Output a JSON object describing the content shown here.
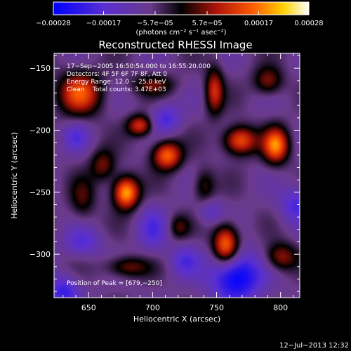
{
  "chart_data": {
    "type": "heatmap",
    "title": "Reconstructed RHESSI Image",
    "xlabel": "Heliocentric X (arcsec)",
    "ylabel": "Heliocentric Y (arcsec)",
    "xlim": [
      623,
      815
    ],
    "ylim": [
      -335,
      -138
    ],
    "x_ticks": [
      650,
      700,
      750,
      800
    ],
    "x_tick_labels": [
      "650",
      "700",
      "750",
      "800"
    ],
    "y_ticks": [
      -150,
      -200,
      -250,
      -300
    ],
    "y_tick_labels": [
      "−150",
      "−200",
      "−250",
      "−300"
    ],
    "colorbar": {
      "min": -0.00028,
      "max": 0.00028,
      "colormap": "blue-purple-black-red-orange-yellow-white",
      "ticks": [
        -0.00028,
        -0.00017,
        -5.7e-05,
        5.7e-05,
        0.00017,
        0.00028
      ],
      "tick_labels": [
        "−0.00028",
        "−0.00017",
        "−5.7e−05",
        "5.7e−05",
        "0.00017",
        "0.00028"
      ],
      "units": "(photons cm⁻² s⁻¹ asec⁻²)"
    },
    "annotations": [
      "17−Sep−2005 16:50:54.000 to 16:55:20.000",
      "Detectors: 4F 5F 6F 7F 8F, Att 0",
      "Energy Range: 12.0 − 25.0 keV",
      "Clean    Total counts: 3.47E+03"
    ],
    "peak_label": "Position of Peak = [679,−250]",
    "peak": {
      "x": 679,
      "y": -250
    },
    "sources": [
      {
        "x": 679,
        "y": -250,
        "value": 0.00028,
        "sx": 7,
        "sy": 9
      },
      {
        "x": 711,
        "y": -220,
        "value": 0.00023,
        "sx": 8,
        "sy": 8
      },
      {
        "x": 757,
        "y": -292,
        "value": 0.00025,
        "sx": 7,
        "sy": 11
      },
      {
        "x": 796,
        "y": -212,
        "value": 0.00024,
        "sx": 7,
        "sy": 10
      },
      {
        "x": 768,
        "y": -208,
        "value": 0.00022,
        "sx": 9,
        "sy": 8
      },
      {
        "x": 690,
        "y": -196,
        "value": 0.00018,
        "sx": 7,
        "sy": 6
      },
      {
        "x": 748,
        "y": -168,
        "value": 0.00017,
        "sx": 5,
        "sy": 13
      },
      {
        "x": 643,
        "y": -170,
        "value": 0.0002,
        "sx": 12,
        "sy": 12
      },
      {
        "x": 700,
        "y": -163,
        "value": 0.0001,
        "sx": 12,
        "sy": 6
      },
      {
        "x": 661,
        "y": -228,
        "value": 0.00012,
        "sx": 7,
        "sy": 9
      },
      {
        "x": 800,
        "y": -302,
        "value": 0.00014,
        "sx": 9,
        "sy": 8
      },
      {
        "x": 680,
        "y": -310,
        "value": 0.00012,
        "sx": 12,
        "sy": 6
      },
      {
        "x": 720,
        "y": -278,
        "value": 9e-05,
        "sx": 6,
        "sy": 7
      },
      {
        "x": 790,
        "y": -160,
        "value": 0.00013,
        "sx": 8,
        "sy": 8
      },
      {
        "x": 740,
        "y": -245,
        "value": 0.0001,
        "sx": 6,
        "sy": 10
      },
      {
        "x": 645,
        "y": -255,
        "value": 9e-05,
        "sx": 7,
        "sy": 12
      },
      {
        "x": 645,
        "y": -290,
        "value": -0.0001,
        "sx": 10,
        "sy": 8
      },
      {
        "x": 630,
        "y": -330,
        "value": -0.00014,
        "sx": 9,
        "sy": 9
      },
      {
        "x": 700,
        "y": -280,
        "value": -0.0001,
        "sx": 8,
        "sy": 12
      },
      {
        "x": 710,
        "y": -190,
        "value": -0.00012,
        "sx": 8,
        "sy": 8
      },
      {
        "x": 765,
        "y": -318,
        "value": -0.00022,
        "sx": 14,
        "sy": 14
      },
      {
        "x": 812,
        "y": -260,
        "value": -0.00012,
        "sx": 9,
        "sy": 10
      },
      {
        "x": 745,
        "y": -265,
        "value": -8e-05,
        "sx": 7,
        "sy": 7
      },
      {
        "x": 640,
        "y": -205,
        "value": -9e-05,
        "sx": 7,
        "sy": 8
      },
      {
        "x": 725,
        "y": -305,
        "value": -0.0001,
        "sx": 8,
        "sy": 9
      }
    ]
  },
  "footer": {
    "timestamp": "12−Jul−2013 12:32"
  }
}
